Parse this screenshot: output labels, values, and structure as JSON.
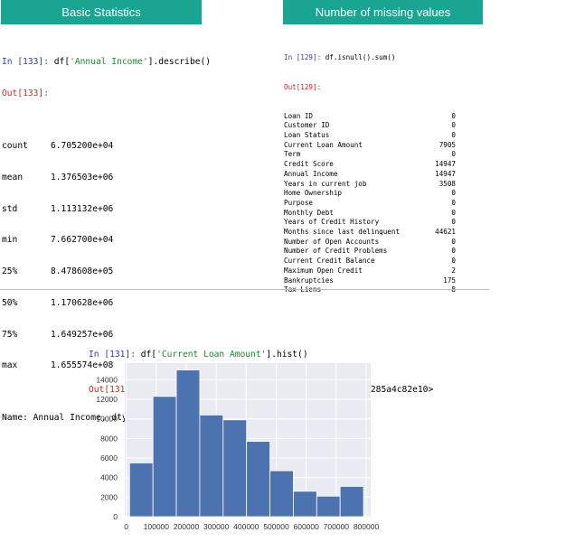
{
  "banners": {
    "stats": "Basic Statistics",
    "missing": "Number of missing values"
  },
  "stats_cell": {
    "in_prompt": "In [133]:",
    "code_pre": "df[",
    "code_str": "'Annual Income'",
    "code_post": "].describe()",
    "out_prompt": "Out[133]:",
    "rows": [
      {
        "k": "count",
        "v": "6.705200e+04"
      },
      {
        "k": "mean",
        "v": "1.376503e+06"
      },
      {
        "k": "std",
        "v": "1.113132e+06"
      },
      {
        "k": "min",
        "v": "7.662700e+04"
      },
      {
        "k": "25%",
        "v": "8.478608e+05"
      },
      {
        "k": "50%",
        "v": "1.170628e+06"
      },
      {
        "k": "75%",
        "v": "1.649257e+06"
      },
      {
        "k": "max",
        "v": "1.655574e+08"
      }
    ],
    "footer": "Name: Annual Income, dtype: float64"
  },
  "missing_cell": {
    "in_prompt": "In [129]:",
    "code": "df.isnull().sum()",
    "out_prompt": "Out[129]:",
    "rows": [
      {
        "k": "Loan ID",
        "v": "0"
      },
      {
        "k": "Customer ID",
        "v": "0"
      },
      {
        "k": "Loan Status",
        "v": "0"
      },
      {
        "k": "Current Loan Amount",
        "v": "7905"
      },
      {
        "k": "Term",
        "v": "0"
      },
      {
        "k": "Credit Score",
        "v": "14947"
      },
      {
        "k": "Annual Income",
        "v": "14947"
      },
      {
        "k": "Years in current job",
        "v": "3508"
      },
      {
        "k": "Home Ownership",
        "v": "0"
      },
      {
        "k": "Purpose",
        "v": "0"
      },
      {
        "k": "Monthly Debt",
        "v": "0"
      },
      {
        "k": "Years of Credit History",
        "v": "0"
      },
      {
        "k": "Months since last delinquent",
        "v": "44621"
      },
      {
        "k": "Number of Open Accounts",
        "v": "0"
      },
      {
        "k": "Number of Credit Problems",
        "v": "0"
      },
      {
        "k": "Current Credit Balance",
        "v": "0"
      },
      {
        "k": "Maximum Open Credit",
        "v": "2"
      },
      {
        "k": "Bankruptcies",
        "v": "175"
      },
      {
        "k": "Tax Liens",
        "v": "8"
      }
    ]
  },
  "hist_cell": {
    "in_prompt": "In [131]:",
    "code_pre": "df[",
    "code_str": "'Current Loan Amount'",
    "code_post": "].hist()",
    "out_prompt": "Out[131]:",
    "output": "<matplotlib.axes._subplots.AxesSubplot at 0x285a4c82e10>"
  },
  "chart_data": {
    "type": "bar",
    "title": "",
    "xlabel": "",
    "ylabel": "",
    "x_ticks": [
      0,
      100000,
      200000,
      300000,
      400000,
      500000,
      600000,
      700000,
      800000
    ],
    "y_ticks": [
      0,
      2000,
      4000,
      6000,
      8000,
      10000,
      12000,
      14000
    ],
    "xlim": [
      -5000,
      815000
    ],
    "ylim": [
      0,
      15700
    ],
    "grid": true,
    "bins": [
      {
        "x0": 11000,
        "x1": 89000,
        "value": 5500
      },
      {
        "x0": 89000,
        "x1": 167000,
        "value": 12300
      },
      {
        "x0": 167000,
        "x1": 245000,
        "value": 15000
      },
      {
        "x0": 245000,
        "x1": 323000,
        "value": 10400
      },
      {
        "x0": 323000,
        "x1": 401000,
        "value": 9900
      },
      {
        "x0": 401000,
        "x1": 479000,
        "value": 7700
      },
      {
        "x0": 479000,
        "x1": 557000,
        "value": 4700
      },
      {
        "x0": 557000,
        "x1": 635000,
        "value": 2600
      },
      {
        "x0": 635000,
        "x1": 713000,
        "value": 2100
      },
      {
        "x0": 713000,
        "x1": 791000,
        "value": 3100
      }
    ],
    "colors": {
      "bar": "#4c72b0",
      "plot_bg": "#eaeaf2",
      "grid": "#ffffff"
    }
  }
}
